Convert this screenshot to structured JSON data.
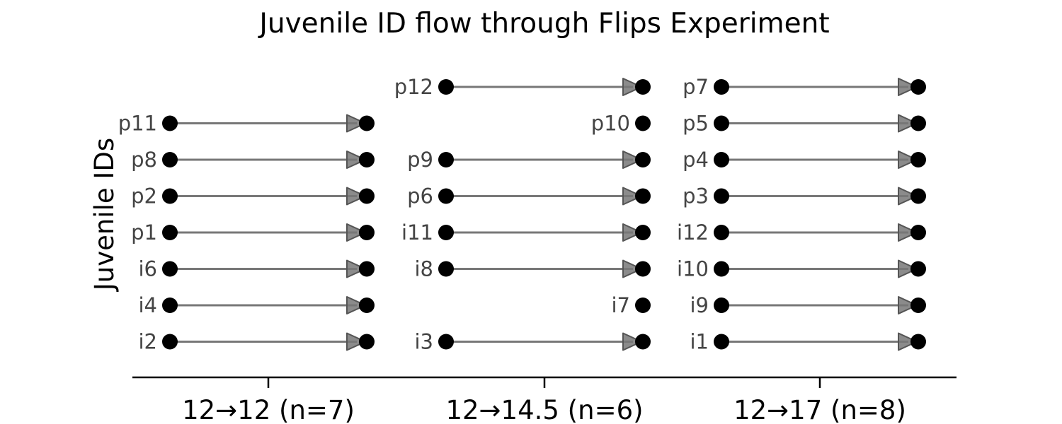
{
  "chart_data": {
    "type": "flow",
    "title": "Juvenile ID flow through Flips Experiment",
    "ylabel": "Juvenile IDs",
    "xlabel": "",
    "categories": [
      "12→12 (n=7)",
      "12→14.5 (n=6)",
      "12→17 (n=8)"
    ],
    "grid": false,
    "groups": [
      {
        "label": "12→12 (n=7)",
        "rows": [
          {
            "id": "p11",
            "moved": true
          },
          {
            "id": "p8",
            "moved": true
          },
          {
            "id": "p2",
            "moved": true
          },
          {
            "id": "p1",
            "moved": true
          },
          {
            "id": "i6",
            "moved": true
          },
          {
            "id": "i4",
            "moved": true
          },
          {
            "id": "i2",
            "moved": true
          }
        ]
      },
      {
        "label": "12→14.5 (n=6)",
        "rows": [
          {
            "id": "p12",
            "moved": true
          },
          {
            "id": "p10",
            "moved": false
          },
          {
            "id": "p9",
            "moved": true
          },
          {
            "id": "p6",
            "moved": true
          },
          {
            "id": "i11",
            "moved": true
          },
          {
            "id": "i8",
            "moved": true
          },
          {
            "id": "i7",
            "moved": false
          },
          {
            "id": "i3",
            "moved": true
          }
        ]
      },
      {
        "label": "12→17 (n=8)",
        "rows": [
          {
            "id": "p7",
            "moved": true
          },
          {
            "id": "p5",
            "moved": true
          },
          {
            "id": "p4",
            "moved": true
          },
          {
            "id": "p3",
            "moved": true
          },
          {
            "id": "i12",
            "moved": true
          },
          {
            "id": "i10",
            "moved": true
          },
          {
            "id": "i9",
            "moved": true
          },
          {
            "id": "i1",
            "moved": true
          }
        ]
      }
    ],
    "colors": {
      "dot": "#000000",
      "arrow_line": "#777777",
      "arrow_head": "#777777",
      "id_label": "#444444",
      "axis": "#000000"
    }
  }
}
